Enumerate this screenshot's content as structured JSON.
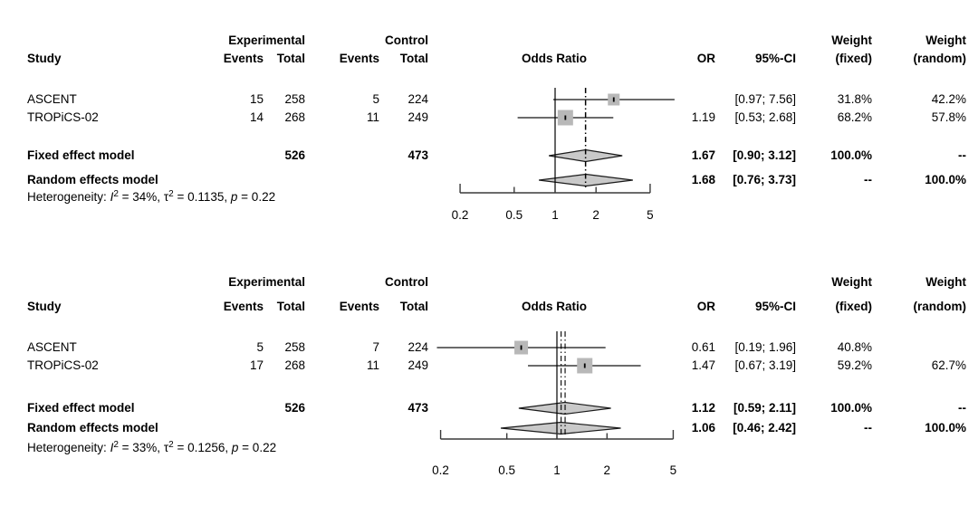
{
  "columns": {
    "study": "Study",
    "experimental": "Experimental",
    "control": "Control",
    "events": "Events",
    "total": "Total",
    "odds_ratio": "Odds Ratio",
    "or": "OR",
    "ci": "95%-CI",
    "weight": "Weight",
    "weight_fixed": "(fixed)",
    "weight_random": "(random)"
  },
  "chart_data": [
    {
      "type": "forest",
      "effect_measure": "Odds Ratio",
      "x_scale": "log",
      "x_ticks": [
        "0.2",
        "0.5",
        "1",
        "2",
        "5"
      ],
      "studies": [
        {
          "study": "ASCENT",
          "experimental_events": 15,
          "experimental_total": 258,
          "control_events": 5,
          "control_total": 224,
          "or": 2.7,
          "ci_low": 0.97,
          "ci_high": 7.56,
          "or_label": "",
          "ci_label": "[0.97; 7.56]",
          "weight_fixed": "31.8%",
          "weight_random": "42.2%"
        },
        {
          "study": "TROPiCS-02",
          "experimental_events": 14,
          "experimental_total": 268,
          "control_events": 11,
          "control_total": 249,
          "or": 1.19,
          "ci_low": 0.53,
          "ci_high": 2.68,
          "or_label": "1.19",
          "ci_label": "[0.53; 2.68]",
          "weight_fixed": "68.2%",
          "weight_random": "57.8%"
        }
      ],
      "fixed_effect": {
        "label": "Fixed effect model",
        "experimental_total": 526,
        "control_total": 473,
        "or": 1.67,
        "ci_low": 0.9,
        "ci_high": 3.12,
        "or_label": "1.67",
        "ci_label": "[0.90; 3.12]",
        "weight_fixed": "100.0%",
        "weight_random": "--"
      },
      "random_effects": {
        "label": "Random effects model",
        "or": 1.68,
        "ci_low": 0.76,
        "ci_high": 3.73,
        "or_label": "1.68",
        "ci_label": "[0.76; 3.73]",
        "weight_fixed": "--",
        "weight_random": "100.0%"
      },
      "heterogeneity": {
        "i2": "34%",
        "tau2": "0.1135",
        "p": "0.22",
        "segments": [
          {
            "text": "Heterogeneity: "
          },
          {
            "text": "I",
            "italic": true
          },
          {
            "text": "2",
            "sup": true
          },
          {
            "text": " = 34%, "
          },
          {
            "text": "τ"
          },
          {
            "text": "2",
            "sup": true
          },
          {
            "text": " = 0.1135, "
          },
          {
            "text": "p",
            "italic": true
          },
          {
            "text": " = 0.22"
          }
        ]
      }
    },
    {
      "type": "forest",
      "effect_measure": "Odds Ratio",
      "x_scale": "log",
      "x_ticks": [
        "0.2",
        "0.5",
        "1",
        "2",
        "5"
      ],
      "studies": [
        {
          "study": "ASCENT",
          "experimental_events": 5,
          "experimental_total": 258,
          "control_events": 7,
          "control_total": 224,
          "or": 0.61,
          "ci_low": 0.19,
          "ci_high": 1.96,
          "or_label": "0.61",
          "ci_label": "[0.19; 1.96]",
          "weight_fixed": "40.8%",
          "weight_random": ""
        },
        {
          "study": "TROPiCS-02",
          "experimental_events": 17,
          "experimental_total": 268,
          "control_events": 11,
          "control_total": 249,
          "or": 1.47,
          "ci_low": 0.67,
          "ci_high": 3.19,
          "or_label": "1.47",
          "ci_label": "[0.67; 3.19]",
          "weight_fixed": "59.2%",
          "weight_random": "62.7%"
        }
      ],
      "fixed_effect": {
        "label": "Fixed effect model",
        "experimental_total": 526,
        "control_total": 473,
        "or": 1.12,
        "ci_low": 0.59,
        "ci_high": 2.11,
        "or_label": "1.12",
        "ci_label": "[0.59; 2.11]",
        "weight_fixed": "100.0%",
        "weight_random": "--"
      },
      "random_effects": {
        "label": "Random effects model",
        "or": 1.06,
        "ci_low": 0.46,
        "ci_high": 2.42,
        "or_label": "1.06",
        "ci_label": "[0.46; 2.42]",
        "weight_fixed": "--",
        "weight_random": "100.0%"
      },
      "heterogeneity": {
        "i2": "33%",
        "tau2": "0.1256",
        "p": "0.22",
        "segments": [
          {
            "text": "Heterogeneity: "
          },
          {
            "text": "I",
            "italic": true
          },
          {
            "text": "2",
            "sup": true
          },
          {
            "text": " = 33%, "
          },
          {
            "text": "τ"
          },
          {
            "text": "2",
            "sup": true
          },
          {
            "text": " = 0.1256, "
          },
          {
            "text": "p",
            "italic": true
          },
          {
            "text": " = 0.22"
          }
        ]
      }
    }
  ]
}
